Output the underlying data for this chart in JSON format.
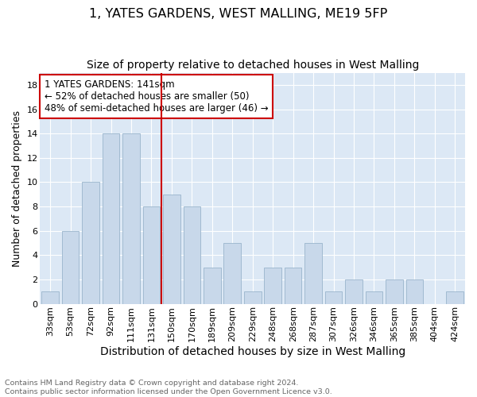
{
  "title": "1, YATES GARDENS, WEST MALLING, ME19 5FP",
  "subtitle": "Size of property relative to detached houses in West Malling",
  "xlabel": "Distribution of detached houses by size in West Malling",
  "ylabel": "Number of detached properties",
  "footnote1": "Contains HM Land Registry data © Crown copyright and database right 2024.",
  "footnote2": "Contains public sector information licensed under the Open Government Licence v3.0.",
  "categories": [
    "33sqm",
    "53sqm",
    "72sqm",
    "92sqm",
    "111sqm",
    "131sqm",
    "150sqm",
    "170sqm",
    "189sqm",
    "209sqm",
    "229sqm",
    "248sqm",
    "268sqm",
    "287sqm",
    "307sqm",
    "326sqm",
    "346sqm",
    "365sqm",
    "385sqm",
    "404sqm",
    "424sqm"
  ],
  "values": [
    1,
    6,
    10,
    14,
    14,
    8,
    9,
    8,
    3,
    5,
    1,
    3,
    3,
    5,
    1,
    2,
    1,
    2,
    2,
    0,
    1
  ],
  "bar_color": "#c8d8ea",
  "bar_edge_color": "#9ab5cc",
  "vline_x": 5.5,
  "vline_color": "#cc0000",
  "annotation_text": "1 YATES GARDENS: 141sqm\n← 52% of detached houses are smaller (50)\n48% of semi-detached houses are larger (46) →",
  "annotation_box_color": "#ffffff",
  "annotation_box_edge_color": "#cc0000",
  "ylim": [
    0,
    19
  ],
  "yticks": [
    0,
    2,
    4,
    6,
    8,
    10,
    12,
    14,
    16,
    18
  ],
  "plot_background": "#dce8f5",
  "title_fontsize": 11.5,
  "subtitle_fontsize": 10,
  "xlabel_fontsize": 10,
  "ylabel_fontsize": 9,
  "tick_fontsize": 8,
  "annot_fontsize": 8.5,
  "footnote_fontsize": 6.8
}
